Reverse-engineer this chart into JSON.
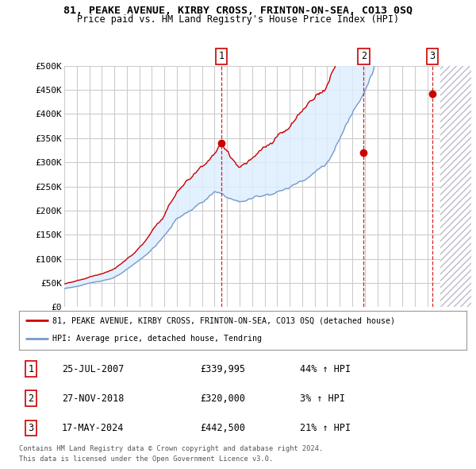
{
  "title": "81, PEAKE AVENUE, KIRBY CROSS, FRINTON-ON-SEA, CO13 0SQ",
  "subtitle": "Price paid vs. HM Land Registry's House Price Index (HPI)",
  "ylim": [
    0,
    500000
  ],
  "yticks": [
    0,
    50000,
    100000,
    150000,
    200000,
    250000,
    300000,
    350000,
    400000,
    450000,
    500000
  ],
  "ytick_labels": [
    "£0",
    "£50K",
    "£100K",
    "£150K",
    "£200K",
    "£250K",
    "£300K",
    "£350K",
    "£400K",
    "£450K",
    "£500K"
  ],
  "xlim_start": 1995.0,
  "xlim_end": 2027.5,
  "plot_bg_color": "#ffffff",
  "grid_color": "#cccccc",
  "fill_color": "#ddeeff",
  "hatch_color": "#bbbbcc",
  "sale_dates": [
    2007.558,
    2018.912,
    2024.378
  ],
  "sale_prices": [
    339995,
    320000,
    442500
  ],
  "sale_labels": [
    "1",
    "2",
    "3"
  ],
  "legend_line1": "81, PEAKE AVENUE, KIRBY CROSS, FRINTON-ON-SEA, CO13 0SQ (detached house)",
  "legend_line2": "HPI: Average price, detached house, Tendring",
  "table_rows": [
    [
      "1",
      "25-JUL-2007",
      "£339,995",
      "44% ↑ HPI"
    ],
    [
      "2",
      "27-NOV-2018",
      "£320,000",
      "3% ↑ HPI"
    ],
    [
      "3",
      "17-MAY-2024",
      "£442,500",
      "21% ↑ HPI"
    ]
  ],
  "footer1": "Contains HM Land Registry data © Crown copyright and database right 2024.",
  "footer2": "This data is licensed under the Open Government Licence v3.0.",
  "red_color": "#cc0000",
  "blue_color": "#7799cc",
  "future_start": 2025.0
}
